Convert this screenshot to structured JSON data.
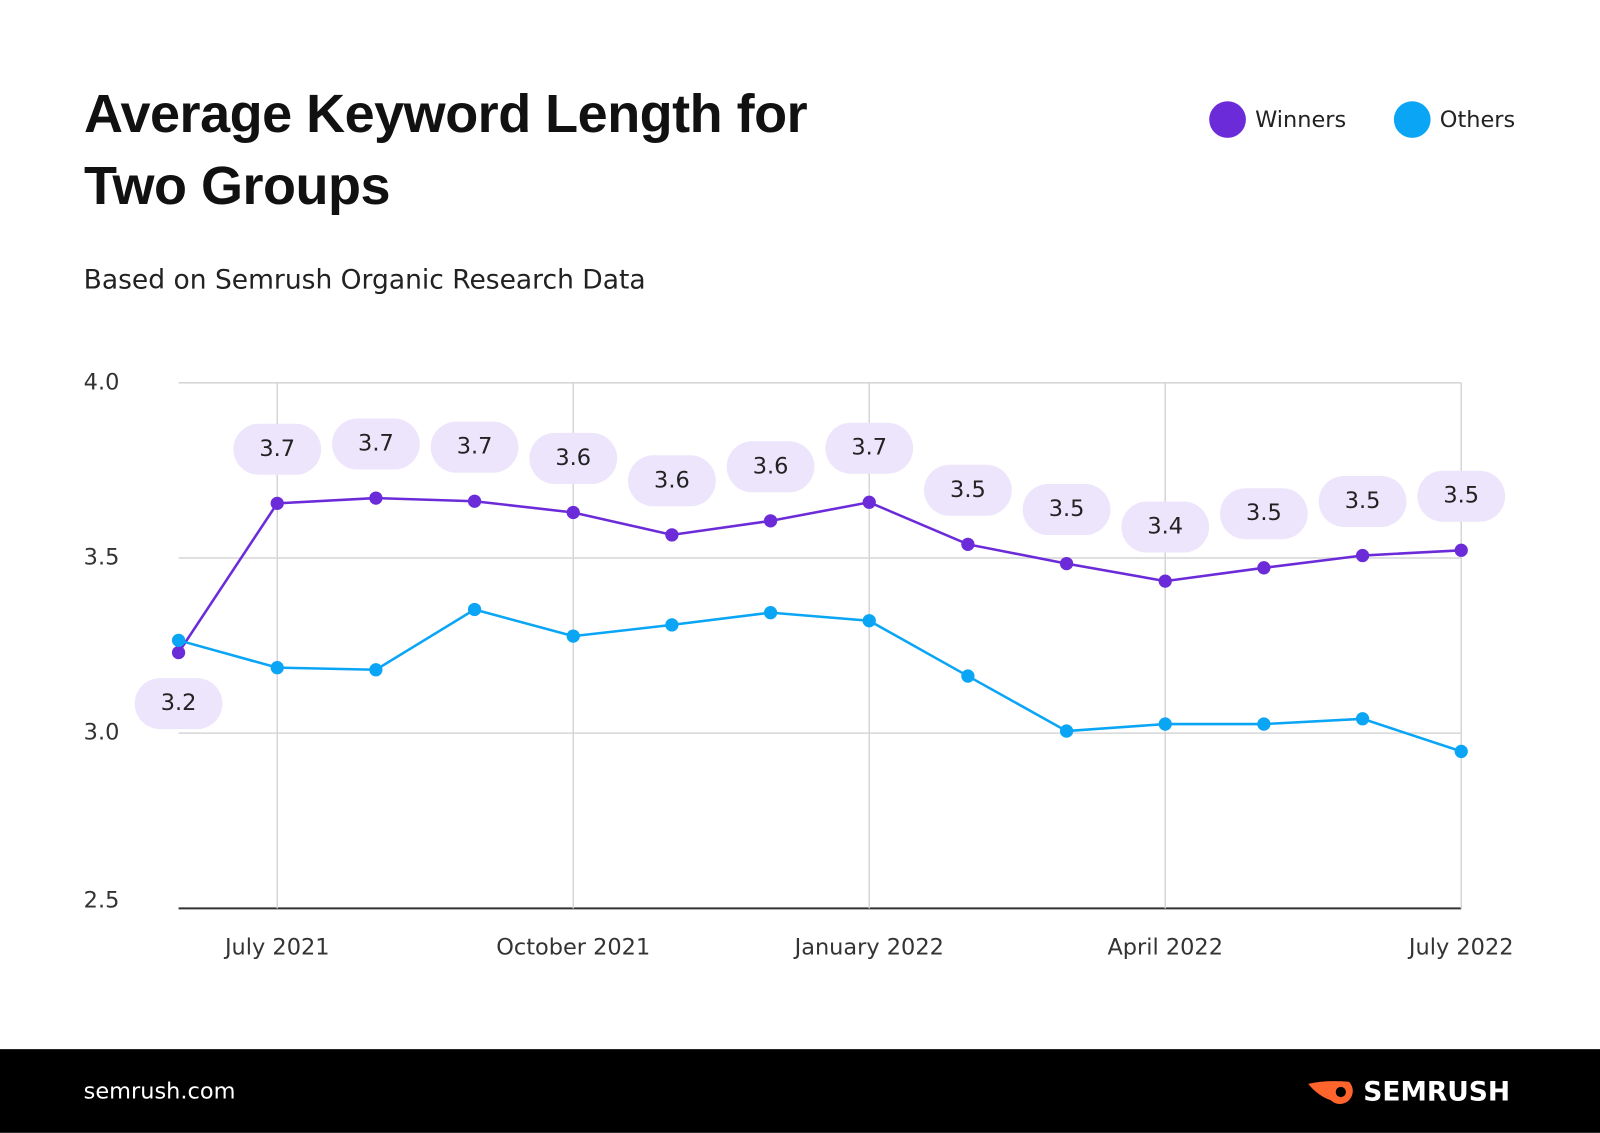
{
  "chart_data": {
    "type": "line",
    "title": "Average Keyword Length for Two Groups",
    "subtitle": "Based on Semrush Organic Research Data",
    "categories": [
      null,
      "July 2021",
      null,
      null,
      "October 2021",
      null,
      null,
      "January 2022",
      null,
      null,
      "April 2022",
      null,
      null,
      "July 2022"
    ],
    "series": [
      {
        "name": "Winners",
        "color": "#6c2bd9",
        "values": [
          3.23,
          3.656,
          3.671,
          3.662,
          3.63,
          3.566,
          3.606,
          3.659,
          3.539,
          3.484,
          3.434,
          3.472,
          3.507,
          3.522
        ],
        "value_labels": [
          "3.2",
          "3.7",
          "3.7",
          "3.7",
          "3.6",
          "3.6",
          "3.6",
          "3.7",
          "3.5",
          "3.5",
          "3.4",
          "3.5",
          "3.5",
          "3.5"
        ]
      },
      {
        "name": "Others",
        "color": "#0aa5f5",
        "values": [
          3.265,
          3.187,
          3.181,
          3.353,
          3.277,
          3.309,
          3.344,
          3.321,
          3.163,
          3.006,
          3.026,
          3.026,
          3.041,
          2.948
        ]
      }
    ],
    "ylim": [
      2.5,
      4.0
    ],
    "yticks": [
      {
        "value": 2.5,
        "label": "2.5"
      },
      {
        "value": 3.0,
        "label": "3.0"
      },
      3.5,
      {
        "value": 4.0,
        "label": "4.0"
      }
    ],
    "grid": true,
    "legend": "top-right"
  },
  "footer": {
    "site": "semrush.com",
    "brand": "SEMRUSH"
  }
}
